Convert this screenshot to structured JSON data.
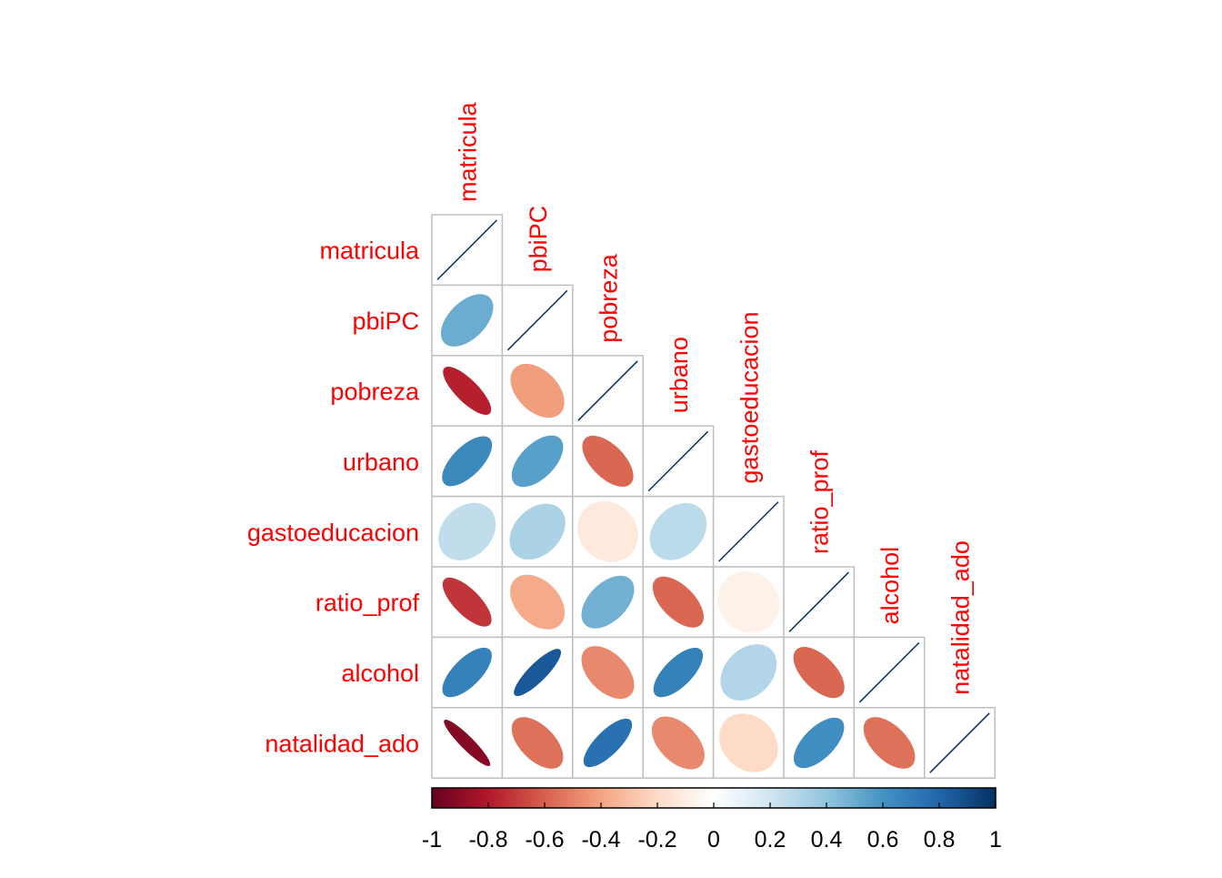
{
  "chart_data": {
    "type": "heatmap",
    "style": "correlation-matrix-lower-triangle-ellipses",
    "variables": [
      "matricula",
      "pbiPC",
      "pobreza",
      "urbano",
      "gastoeducacion",
      "ratio_prof",
      "alcohol",
      "natalidad_ado"
    ],
    "label_color": "#ff0000",
    "cell_border_color": "#bfbfbf",
    "diagonal_color": "#053061",
    "correlations": [
      [
        1.0
      ],
      [
        0.5,
        1.0
      ],
      [
        -0.78,
        -0.42,
        1.0
      ],
      [
        0.65,
        0.55,
        -0.58,
        1.0
      ],
      [
        0.25,
        0.32,
        -0.12,
        0.27,
        1.0
      ],
      [
        -0.72,
        -0.38,
        0.48,
        -0.58,
        -0.08,
        1.0
      ],
      [
        0.68,
        0.85,
        -0.48,
        0.68,
        0.3,
        -0.58,
        1.0
      ],
      [
        -0.92,
        -0.55,
        0.75,
        -0.48,
        -0.2,
        0.62,
        -0.55,
        1.0
      ]
    ],
    "colorbar": {
      "ticks": [
        "-1",
        "-0.8",
        "-0.6",
        "-0.4",
        "-0.2",
        "0",
        "0.2",
        "0.4",
        "0.6",
        "0.8",
        "1"
      ],
      "range": [
        -1,
        1
      ],
      "stops": [
        "#67001f",
        "#b2182b",
        "#d6604d",
        "#f4a582",
        "#fddbc7",
        "#ffffff",
        "#d1e5f0",
        "#92c5de",
        "#4393c3",
        "#2166ac",
        "#053061"
      ]
    }
  }
}
